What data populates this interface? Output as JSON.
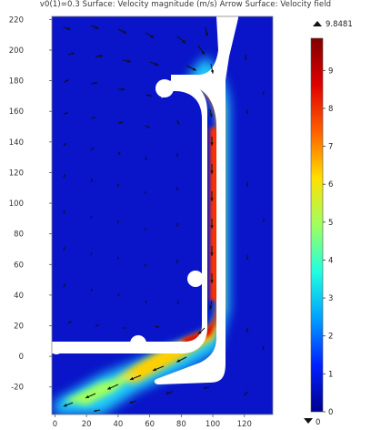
{
  "title_text": "v0(1)=0.3   Surface: Velocity magnitude (m/s)  Arrow Surface: Velocity field",
  "chart_data": {
    "type": "heatmap",
    "title": "v0(1)=0.3   Surface: Velocity magnitude (m/s)  Arrow Surface: Velocity field",
    "xlabel": "",
    "ylabel": "",
    "xlim": [
      -2,
      138
    ],
    "ylim": [
      -38,
      222
    ],
    "x_ticks": [
      0,
      20,
      40,
      60,
      80,
      100,
      120
    ],
    "y_ticks": [
      -20,
      0,
      20,
      40,
      60,
      80,
      100,
      120,
      140,
      160,
      180,
      200,
      220
    ],
    "colorbar": {
      "min": 0,
      "max": 9.8481,
      "max_label": "9.8481",
      "min_label": "0",
      "ticks": [
        0,
        1,
        2,
        3,
        4,
        5,
        6,
        7,
        8,
        9
      ],
      "colormap": [
        "#00008f",
        "#0020ff",
        "#00a0ff",
        "#20ffdf",
        "#9fff60",
        "#ffe000",
        "#ff6000",
        "#df0000",
        "#800000"
      ]
    },
    "colors": {
      "background_field": "#0a14c8",
      "obstacle": "#ffffff",
      "arrow": "#111111"
    }
  }
}
